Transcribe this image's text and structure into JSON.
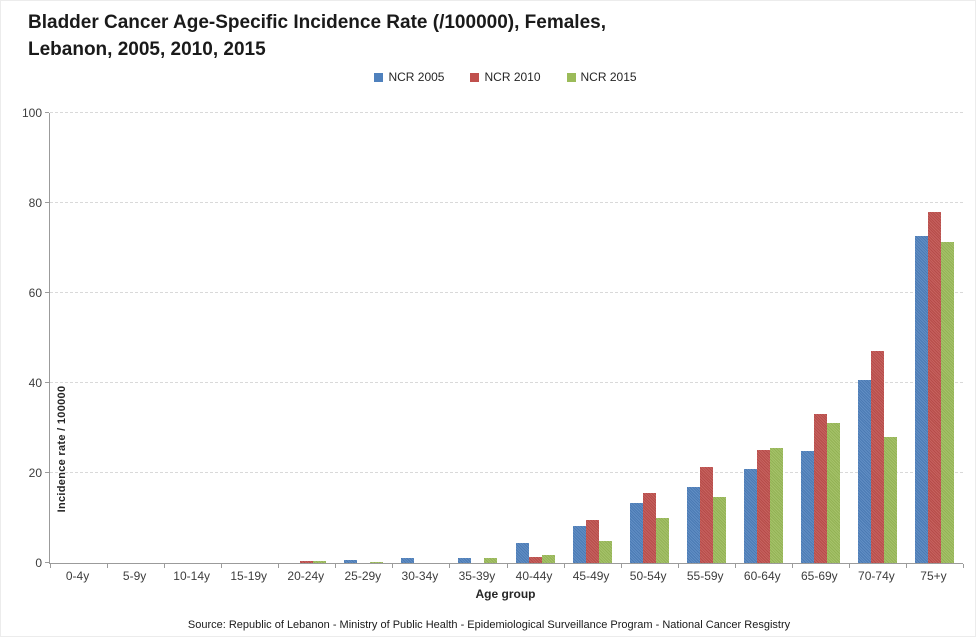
{
  "title": {
    "line1": "Bladder Cancer Age-Specific Incidence Rate (/100000), Females,",
    "line2": "Lebanon, 2005, 2010, 2015"
  },
  "source": "Source: Republic of Lebanon - Ministry of Public Health - Epidemiological Surveillance Program - National Cancer Resgistry",
  "axes": {
    "y_title": "Incidence rate / 100000",
    "x_title": "Age group"
  },
  "chart_data": {
    "type": "bar",
    "title": "Bladder Cancer Age-Specific Incidence Rate (/100000), Females, Lebanon, 2005, 2010, 2015",
    "xlabel": "Age group",
    "ylabel": "Incidence rate / 100000",
    "ylim": [
      0,
      100
    ],
    "y_ticks": [
      0,
      20,
      40,
      60,
      80,
      100
    ],
    "grid": true,
    "legend_position": "top-center",
    "categories": [
      "0-4y",
      "5-9y",
      "10-14y",
      "15-19y",
      "20-24y",
      "25-29y",
      "30-34y",
      "35-39y",
      "40-44y",
      "45-49y",
      "50-54y",
      "55-59y",
      "60-64y",
      "65-69y",
      "70-74y",
      "75+y"
    ],
    "series": [
      {
        "name": "NCR 2005",
        "color": "#4F81BD",
        "values": [
          0,
          0,
          0,
          0,
          0,
          0.6,
          1.2,
          1.2,
          4.5,
          8.2,
          13.4,
          16.8,
          20.8,
          24.8,
          40.7,
          72.7
        ]
      },
      {
        "name": "NCR 2010",
        "color": "#C0504D",
        "values": [
          0,
          0,
          0,
          0,
          0.4,
          0,
          0,
          0,
          1.4,
          9.6,
          15.6,
          21.3,
          25.0,
          33.0,
          47.0,
          78.0
        ]
      },
      {
        "name": "NCR 2015",
        "color": "#9BBB59",
        "values": [
          0,
          0,
          0,
          0,
          0.4,
          0.3,
          0,
          1.0,
          1.8,
          4.8,
          10.1,
          14.7,
          25.6,
          31.0,
          28.0,
          71.3
        ]
      }
    ]
  }
}
